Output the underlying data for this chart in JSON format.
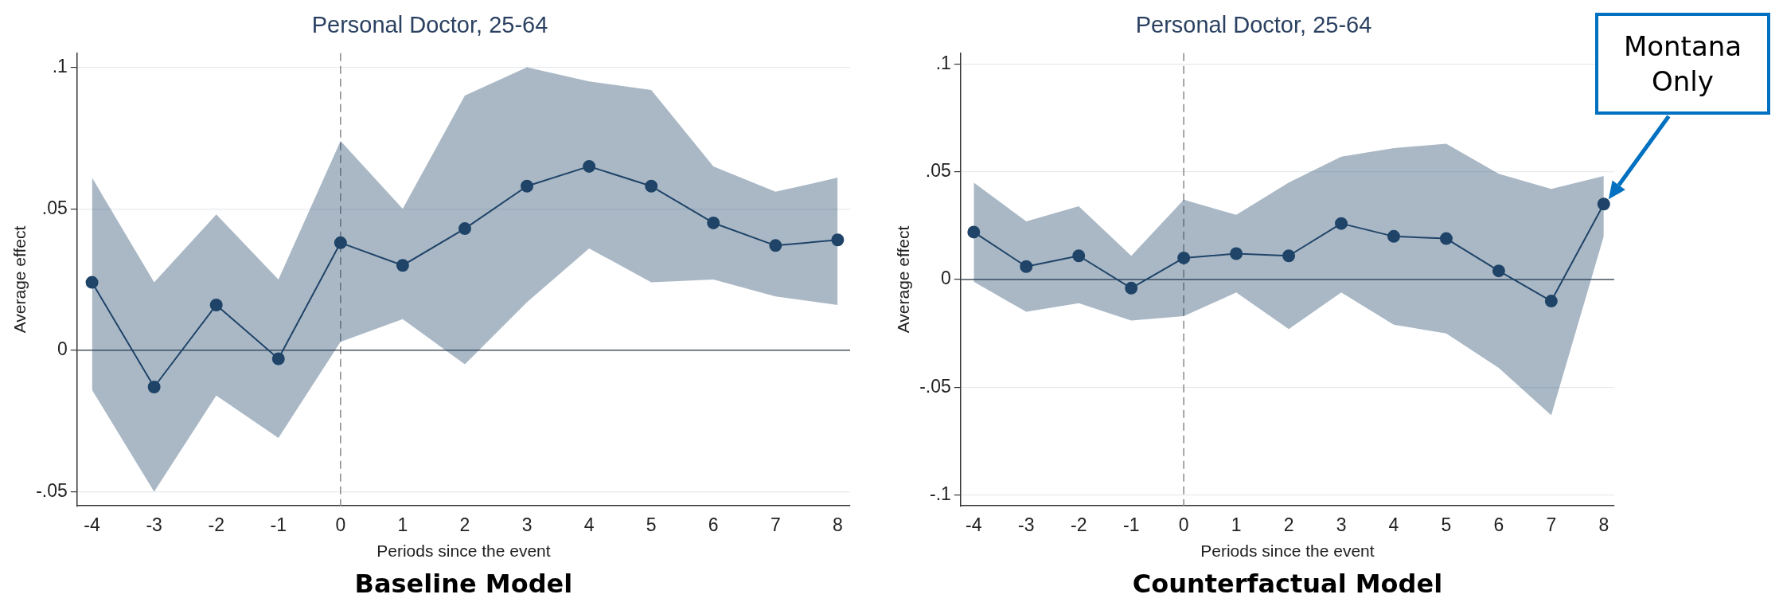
{
  "chart_data": [
    {
      "type": "line",
      "title": "Personal Doctor, 25-64",
      "xlabel": "Periods since the event",
      "ylabel": "Average effect",
      "x": [
        -4,
        -3,
        -2,
        -1,
        0,
        1,
        2,
        3,
        4,
        5,
        6,
        7,
        8
      ],
      "series": [
        {
          "color": "#1f4468",
          "values": [
            0.024,
            -0.013,
            0.016,
            -0.003,
            0.038,
            0.03,
            0.043,
            0.058,
            0.065,
            0.058,
            0.045,
            0.037,
            0.039
          ],
          "lower": [
            -0.014,
            -0.05,
            -0.016,
            -0.031,
            0.003,
            0.011,
            -0.005,
            0.017,
            0.036,
            0.024,
            0.025,
            0.019,
            0.016
          ],
          "upper": [
            0.061,
            0.024,
            0.048,
            0.025,
            0.074,
            0.05,
            0.09,
            0.1,
            0.095,
            0.092,
            0.065,
            0.056,
            0.061
          ]
        }
      ],
      "xlim": [
        -4.24,
        8.2
      ],
      "xticks": [
        -4,
        -3,
        -2,
        -1,
        0,
        1,
        2,
        3,
        4,
        5,
        6,
        7,
        8
      ],
      "ylim": [
        -0.055,
        0.105
      ],
      "yticks": [
        {
          "value": -0.05,
          "label": "-.05"
        },
        {
          "value": 0,
          "label": "0"
        },
        {
          "value": 0.05,
          "label": ".05"
        },
        {
          "value": 0.1,
          "label": ".1"
        }
      ],
      "ref_lines": [
        {
          "axis": "x",
          "value": 0,
          "color": "#888888",
          "line_style": "dashed"
        },
        {
          "axis": "y",
          "value": 0,
          "color": "#4a5560",
          "line_style": "solid"
        }
      ],
      "grid": "y",
      "legend": false,
      "marker": "circle",
      "line_style": "solid",
      "annotations": [
        "Baseline Model"
      ]
    },
    {
      "type": "line",
      "title": "Personal Doctor, 25-64",
      "xlabel": "Periods since the event",
      "ylabel": "Average effect",
      "x": [
        -4,
        -3,
        -2,
        -1,
        0,
        1,
        2,
        3,
        4,
        5,
        6,
        7,
        8
      ],
      "series": [
        {
          "color": "#1f4468",
          "values": [
            0.022,
            0.006,
            0.011,
            -0.004,
            0.01,
            0.012,
            0.011,
            0.026,
            0.02,
            0.019,
            0.004,
            -0.01,
            0.035
          ],
          "lower": [
            -0.001,
            -0.015,
            -0.011,
            -0.019,
            -0.017,
            -0.006,
            -0.023,
            -0.006,
            -0.021,
            -0.025,
            -0.041,
            -0.063,
            0.02
          ],
          "upper": [
            0.045,
            0.027,
            0.034,
            0.011,
            0.037,
            0.03,
            0.045,
            0.057,
            0.061,
            0.063,
            0.049,
            0.042,
            0.048
          ]
        }
      ],
      "xlim": [
        -4.25,
        8.2
      ],
      "xticks": [
        -4,
        -3,
        -2,
        -1,
        0,
        1,
        2,
        3,
        4,
        5,
        6,
        7,
        8
      ],
      "ylim": [
        -0.105,
        0.105
      ],
      "yticks": [
        {
          "value": -0.1,
          "label": "-.1"
        },
        {
          "value": -0.05,
          "label": "-.05"
        },
        {
          "value": 0,
          "label": "0"
        },
        {
          "value": 0.05,
          "label": ".05"
        },
        {
          "value": 0.1,
          "label": ".1"
        }
      ],
      "ref_lines": [
        {
          "axis": "x",
          "value": 0,
          "color": "#888888",
          "line_style": "dashed"
        },
        {
          "axis": "y",
          "value": 0,
          "color": "#4a5560",
          "line_style": "solid"
        }
      ],
      "grid": "y",
      "legend": false,
      "marker": "circle",
      "line_style": "solid",
      "annotations": [
        "Counterfactual Model",
        "Montana Only"
      ]
    }
  ]
}
